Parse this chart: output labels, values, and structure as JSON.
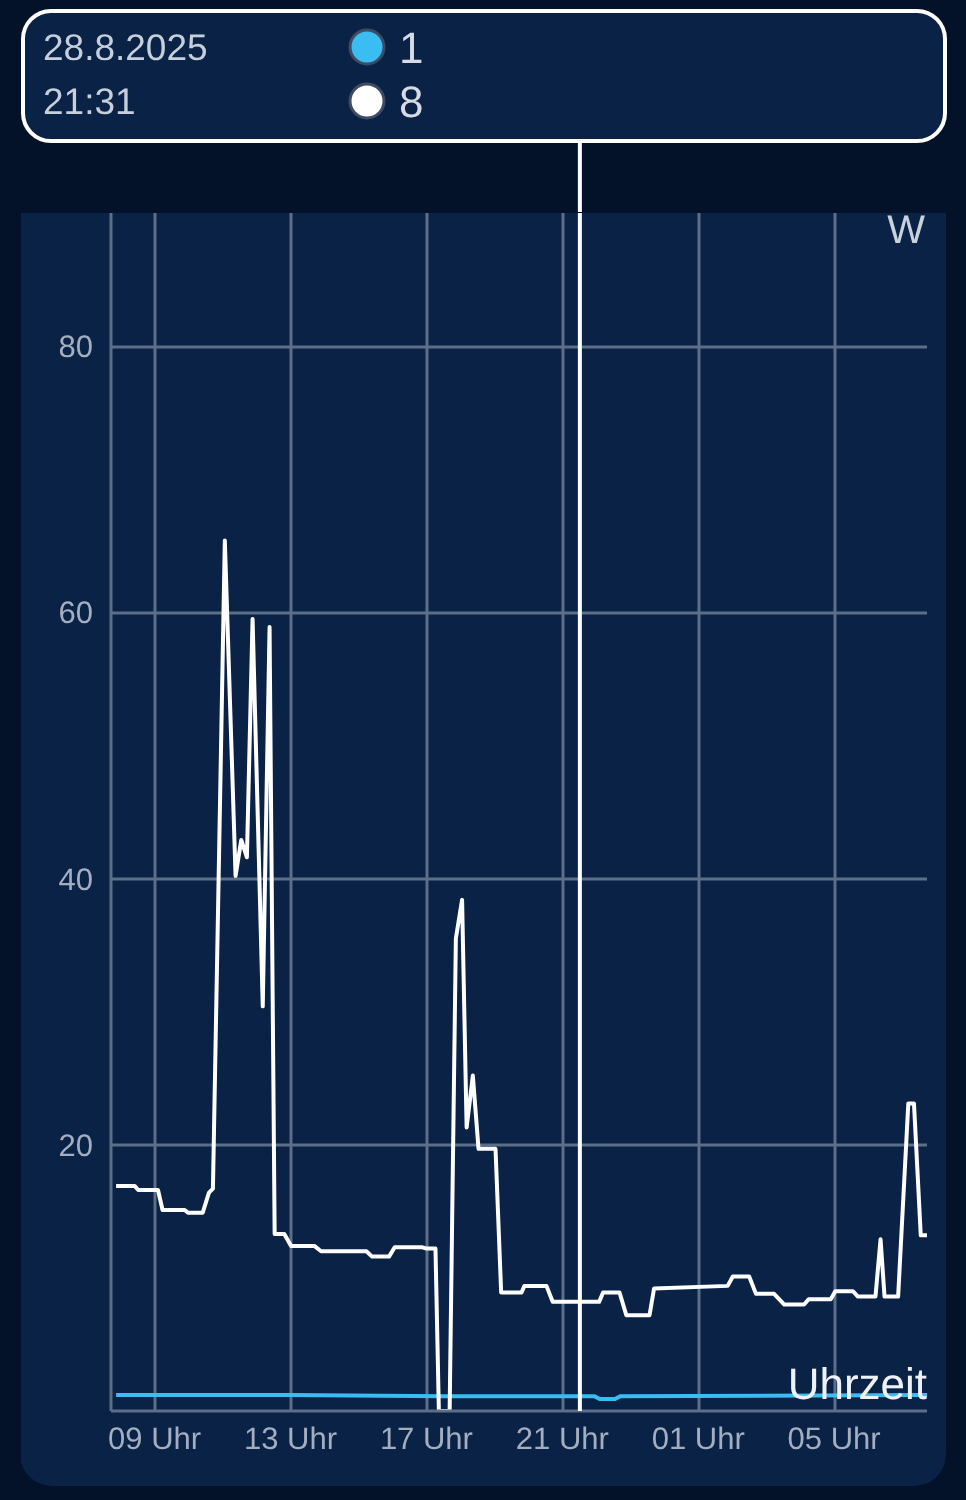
{
  "chart_data": {
    "type": "line",
    "xlabel": "Uhrzeit",
    "ylabel": "W",
    "annotations": [
      "28.8.2025",
      "21:31"
    ],
    "xlim": [
      "2025-08-28T07:43",
      "2025-08-29T07:44"
    ],
    "xticks": [
      {
        "value": "2025-08-28T09:00",
        "label": "09 Uhr"
      },
      {
        "value": "2025-08-28T13:00",
        "label": "13 Uhr"
      },
      {
        "value": "2025-08-28T17:00",
        "label": "17 Uhr"
      },
      {
        "value": "2025-08-28T21:00",
        "label": "21 Uhr"
      },
      {
        "value": "2025-08-29T01:00",
        "label": "01 Uhr"
      },
      {
        "value": "2025-08-29T05:00",
        "label": "05 Uhr"
      }
    ],
    "ylim": [
      0,
      90
    ],
    "yticks": [
      20,
      40,
      60,
      80
    ],
    "grid": true,
    "legend": "top",
    "ref_lines": [
      {
        "axis": "x",
        "value": "2025-08-28T21:31",
        "color": "#ffffff"
      }
    ],
    "series": [
      {
        "name": "1",
        "color": "#3bbcf2",
        "x": [
          "2025-08-28T07:52",
          "2025-08-28T13:00",
          "2025-08-28T17:30",
          "2025-08-28T21:57",
          "2025-08-28T22:06",
          "2025-08-28T22:33",
          "2025-08-28T22:42",
          "2025-08-29T07:44"
        ],
        "values": [
          1.2,
          1.2,
          1.1,
          1.1,
          0.9,
          0.9,
          1.1,
          1.2
        ]
      },
      {
        "name": "8",
        "color": "#ffffff",
        "x": [
          "2025-08-28T07:52",
          "2025-08-28T08:25",
          "2025-08-28T08:31",
          "2025-08-28T09:06",
          "2025-08-28T09:14",
          "2025-08-28T09:53",
          "2025-08-28T09:59",
          "2025-08-28T10:25",
          "2025-08-28T10:36",
          "2025-08-28T10:43",
          "2025-08-28T11:04",
          "2025-08-28T11:23",
          "2025-08-28T11:33",
          "2025-08-28T11:43",
          "2025-08-28T11:53",
          "2025-08-28T12:11",
          "2025-08-28T12:23",
          "2025-08-28T12:32",
          "2025-08-28T12:49",
          "2025-08-28T13:01",
          "2025-08-28T13:42",
          "2025-08-28T13:54",
          "2025-08-28T15:14",
          "2025-08-28T15:24",
          "2025-08-28T15:54",
          "2025-08-28T16:04",
          "2025-08-28T16:53",
          "2025-08-28T17:00",
          "2025-08-28T17:16",
          "2025-08-28T17:22",
          "2025-08-28T17:41",
          "2025-08-28T17:52",
          "2025-08-28T18:03",
          "2025-08-28T18:11",
          "2025-08-28T18:22",
          "2025-08-28T18:32",
          "2025-08-28T19:02",
          "2025-08-28T19:12",
          "2025-08-28T19:48",
          "2025-08-28T19:53",
          "2025-08-28T20:32",
          "2025-08-28T20:43",
          "2025-08-28T22:05",
          "2025-08-28T22:12",
          "2025-08-28T22:41",
          "2025-08-28T22:53",
          "2025-08-28T23:34",
          "2025-08-28T23:42",
          "2025-08-29T01:52",
          "2025-08-29T02:01",
          "2025-08-29T02:30",
          "2025-08-29T02:42",
          "2025-08-29T03:14",
          "2025-08-29T03:32",
          "2025-08-29T04:07",
          "2025-08-29T04:15",
          "2025-08-29T04:54",
          "2025-08-29T05:02",
          "2025-08-29T05:33",
          "2025-08-29T05:42",
          "2025-08-29T06:13",
          "2025-08-29T06:22",
          "2025-08-29T06:29",
          "2025-08-29T06:53",
          "2025-08-29T07:11",
          "2025-08-29T07:21",
          "2025-08-29T07:33",
          "2025-08-29T07:44"
        ],
        "values": [
          16.9,
          16.9,
          16.6,
          16.6,
          15.1,
          15.1,
          14.9,
          14.9,
          16.4,
          16.7,
          65.4,
          40.2,
          42.9,
          41.6,
          59.5,
          30.4,
          58.9,
          13.3,
          13.3,
          12.4,
          12.4,
          12.0,
          12.0,
          11.6,
          11.6,
          12.3,
          12.3,
          12.2,
          12.2,
          0,
          0,
          35.5,
          38.4,
          21.3,
          25.2,
          19.7,
          19.7,
          8.9,
          8.9,
          9.4,
          9.4,
          8.2,
          8.2,
          8.9,
          8.9,
          7.2,
          7.2,
          9.2,
          9.4,
          10.1,
          10.1,
          8.8,
          8.8,
          8.0,
          8.0,
          8.4,
          8.4,
          9.0,
          9.0,
          8.6,
          8.6,
          12.9,
          8.6,
          8.6,
          23.1,
          23.1,
          13.2,
          13.2
        ]
      }
    ]
  }
}
